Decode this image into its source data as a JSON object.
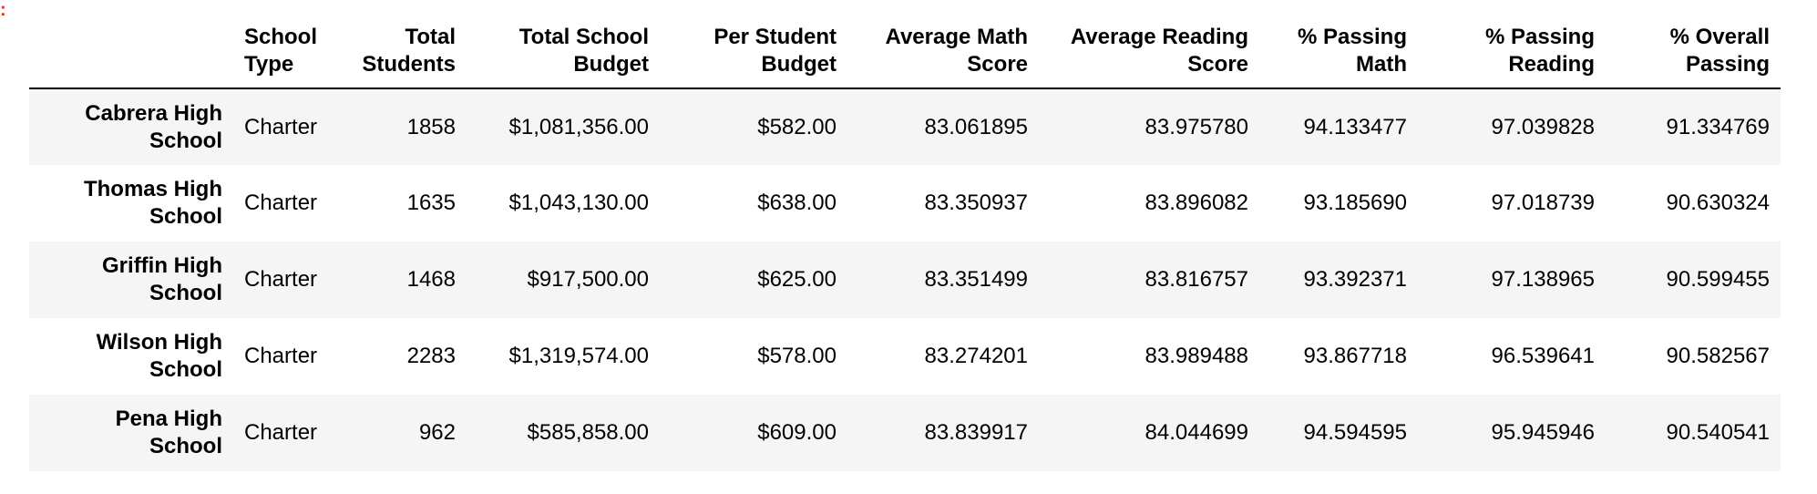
{
  "marker": ":",
  "columns": [
    {
      "key": "index",
      "label": ""
    },
    {
      "key": "school_type",
      "label": "School Type"
    },
    {
      "key": "total_students",
      "label": "Total Students"
    },
    {
      "key": "total_budget",
      "label": "Total School Budget"
    },
    {
      "key": "per_student_budget",
      "label": "Per Student Budget"
    },
    {
      "key": "avg_math",
      "label": "Average Math Score"
    },
    {
      "key": "avg_reading",
      "label": "Average Reading Score"
    },
    {
      "key": "pct_math",
      "label": "% Passing Math"
    },
    {
      "key": "pct_reading",
      "label": "% Passing Reading"
    },
    {
      "key": "pct_overall",
      "label": "% Overall Passing"
    }
  ],
  "rows": [
    {
      "name": "Cabrera High School",
      "school_type": "Charter",
      "total_students": "1858",
      "total_budget": "$1,081,356.00",
      "per_student_budget": "$582.00",
      "avg_math": "83.061895",
      "avg_reading": "83.975780",
      "pct_math": "94.133477",
      "pct_reading": "97.039828",
      "pct_overall": "91.334769"
    },
    {
      "name": "Thomas High School",
      "school_type": "Charter",
      "total_students": "1635",
      "total_budget": "$1,043,130.00",
      "per_student_budget": "$638.00",
      "avg_math": "83.350937",
      "avg_reading": "83.896082",
      "pct_math": "93.185690",
      "pct_reading": "97.018739",
      "pct_overall": "90.630324"
    },
    {
      "name": "Griffin High School",
      "school_type": "Charter",
      "total_students": "1468",
      "total_budget": "$917,500.00",
      "per_student_budget": "$625.00",
      "avg_math": "83.351499",
      "avg_reading": "83.816757",
      "pct_math": "93.392371",
      "pct_reading": "97.138965",
      "pct_overall": "90.599455"
    },
    {
      "name": "Wilson High School",
      "school_type": "Charter",
      "total_students": "2283",
      "total_budget": "$1,319,574.00",
      "per_student_budget": "$578.00",
      "avg_math": "83.274201",
      "avg_reading": "83.989488",
      "pct_math": "93.867718",
      "pct_reading": "96.539641",
      "pct_overall": "90.582567"
    },
    {
      "name": "Pena High School",
      "school_type": "Charter",
      "total_students": "962",
      "total_budget": "$585,858.00",
      "per_student_budget": "$609.00",
      "avg_math": "83.839917",
      "avg_reading": "84.044699",
      "pct_math": "94.594595",
      "pct_reading": "95.945946",
      "pct_overall": "90.540541"
    }
  ],
  "colors": {
    "stripe": "#f5f5f5",
    "marker": "#e02c1c",
    "header_rule": "#000000"
  }
}
